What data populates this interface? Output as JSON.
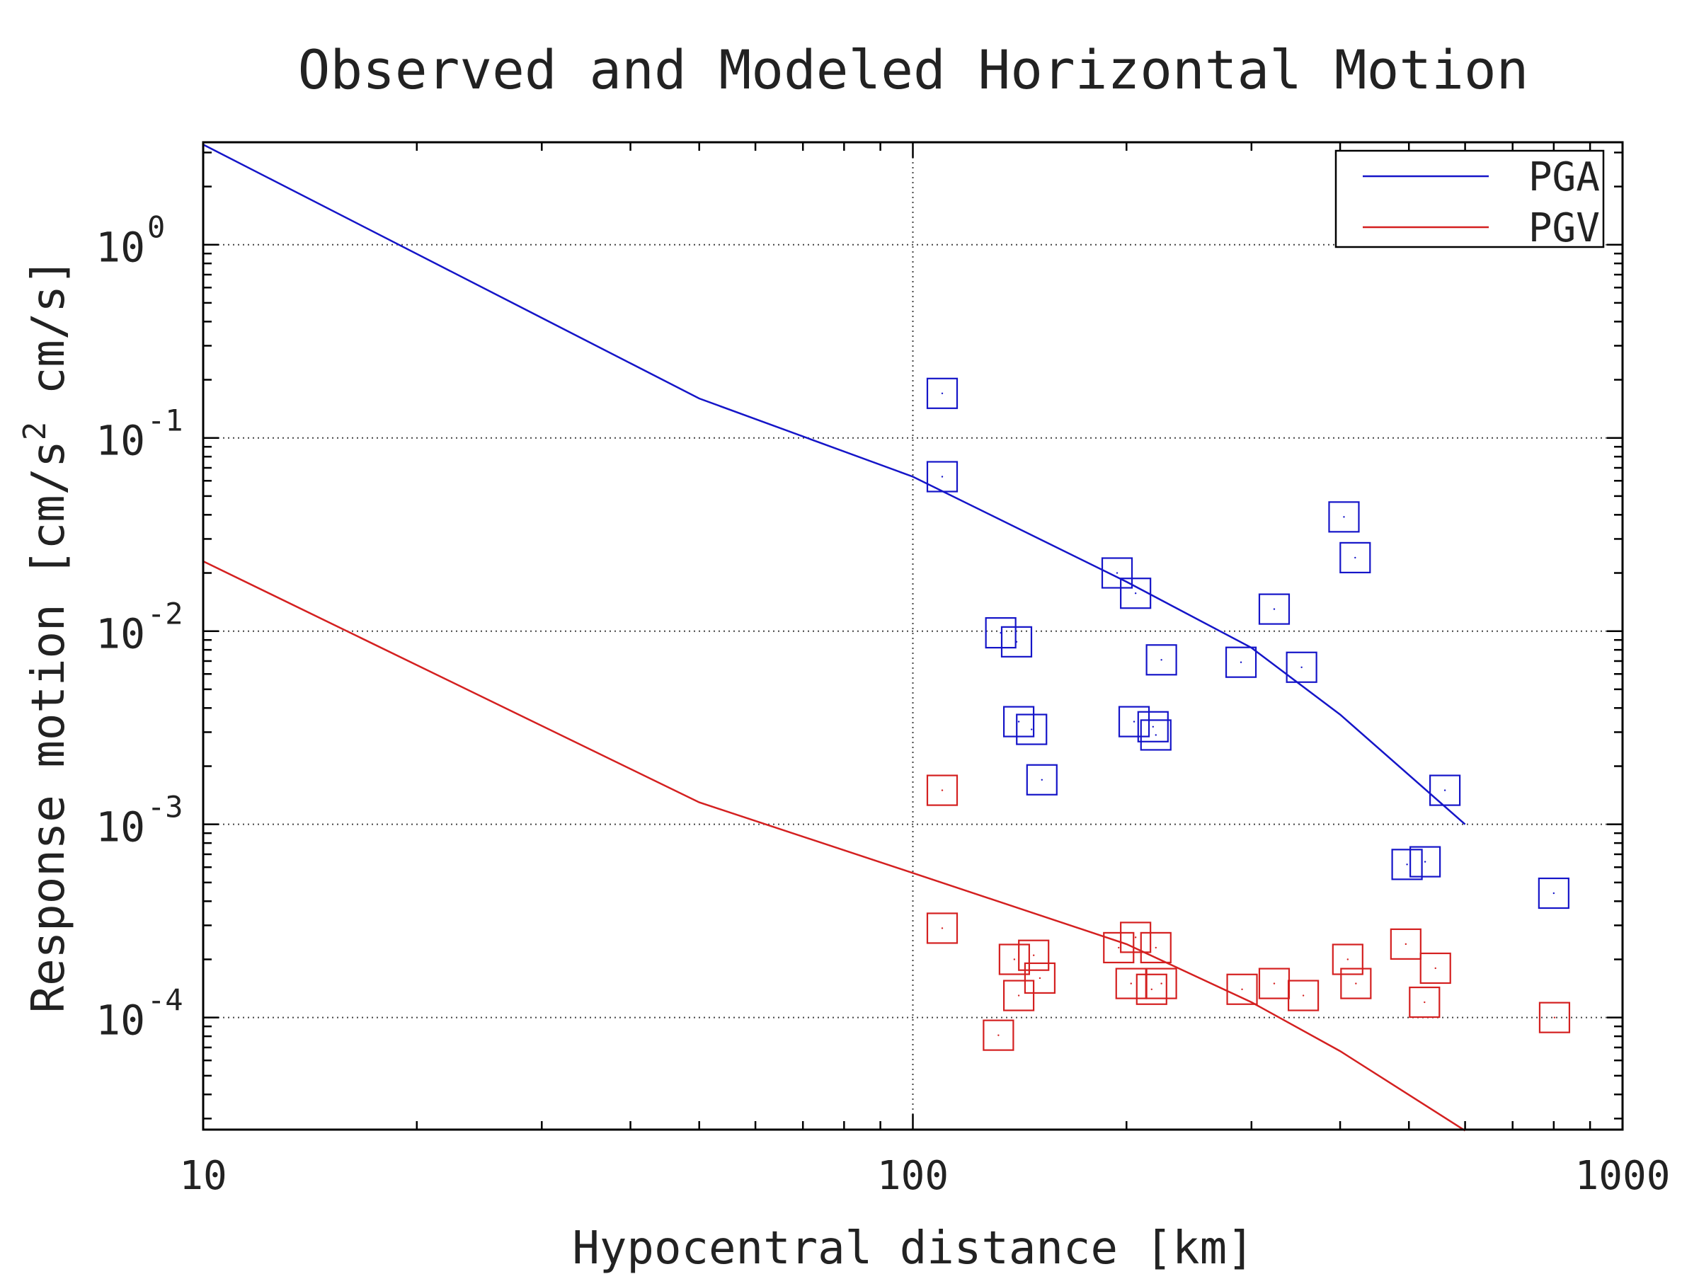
{
  "chart_data": {
    "type": "scatter",
    "title": "Observed and Modeled Horizontal Motion",
    "xlabel": "Hypocentral distance [km]",
    "ylabel_parts": [
      "Response motion  [cm/s",
      "2",
      "  cm/s]"
    ],
    "x_scale": "log",
    "y_scale": "log",
    "xlim": [
      10,
      1000
    ],
    "ylim": [
      2.63e-05,
      3.39
    ],
    "x_ticks": [
      {
        "value": 10,
        "label": "10"
      },
      {
        "value": 100,
        "label": "100"
      },
      {
        "value": 1000,
        "label": "1000"
      }
    ],
    "y_ticks": [
      {
        "value": 1,
        "base": "10",
        "exp": "0"
      },
      {
        "value": 0.1,
        "base": "10",
        "exp": "-1"
      },
      {
        "value": 0.01,
        "base": "10",
        "exp": "-2"
      },
      {
        "value": 0.001,
        "base": "10",
        "exp": "-3"
      },
      {
        "value": 0.0001,
        "base": "10",
        "exp": "-4"
      }
    ],
    "grid": "dotted, major ticks",
    "legend_position": "top-right",
    "series": [
      {
        "name": "PGA",
        "color": "#1515c8",
        "line": {
          "x": [
            10,
            50,
            100,
            200,
            300,
            400,
            600
          ],
          "y": [
            3.3,
            0.16,
            0.063,
            0.018,
            0.0082,
            0.0037,
            0.001
          ]
        },
        "points": {
          "x": [
            110,
            110,
            133,
            140,
            141,
            147,
            152,
            194,
            205,
            206,
            218,
            220,
            224,
            290,
            323,
            353,
            405,
            420,
            497,
            527,
            562,
            800
          ],
          "y": [
            0.17,
            0.063,
            0.0098,
            0.0088,
            0.0034,
            0.0031,
            0.0017,
            0.02,
            0.0034,
            0.0157,
            0.0032,
            0.0029,
            0.0071,
            0.0069,
            0.013,
            0.0065,
            0.039,
            0.024,
            0.00062,
            0.00064,
            0.0015,
            0.00044
          ]
        }
      },
      {
        "name": "PGV",
        "color": "#d42020",
        "line": {
          "x": [
            10,
            50,
            100,
            200,
            300,
            400,
            600
          ],
          "y": [
            0.023,
            0.0013,
            0.00056,
            0.00024,
            0.00012,
            6.7e-05,
            2.6e-05
          ]
        },
        "points": {
          "x": [
            110,
            110,
            132,
            139,
            141,
            148,
            151,
            195,
            203,
            206,
            217,
            220,
            224,
            291,
            323,
            355,
            410,
            421,
            495,
            526,
            545,
            802
          ],
          "y": [
            0.0015,
            0.00029,
            8.1e-05,
            0.0002,
            0.00013,
            0.00021,
            0.00016,
            0.00023,
            0.00015,
            0.00026,
            0.00014,
            0.00023,
            0.00015,
            0.00014,
            0.00015,
            0.00013,
            0.0002,
            0.00015,
            0.00024,
            0.00012,
            0.00018,
            0.0001
          ]
        }
      }
    ]
  }
}
